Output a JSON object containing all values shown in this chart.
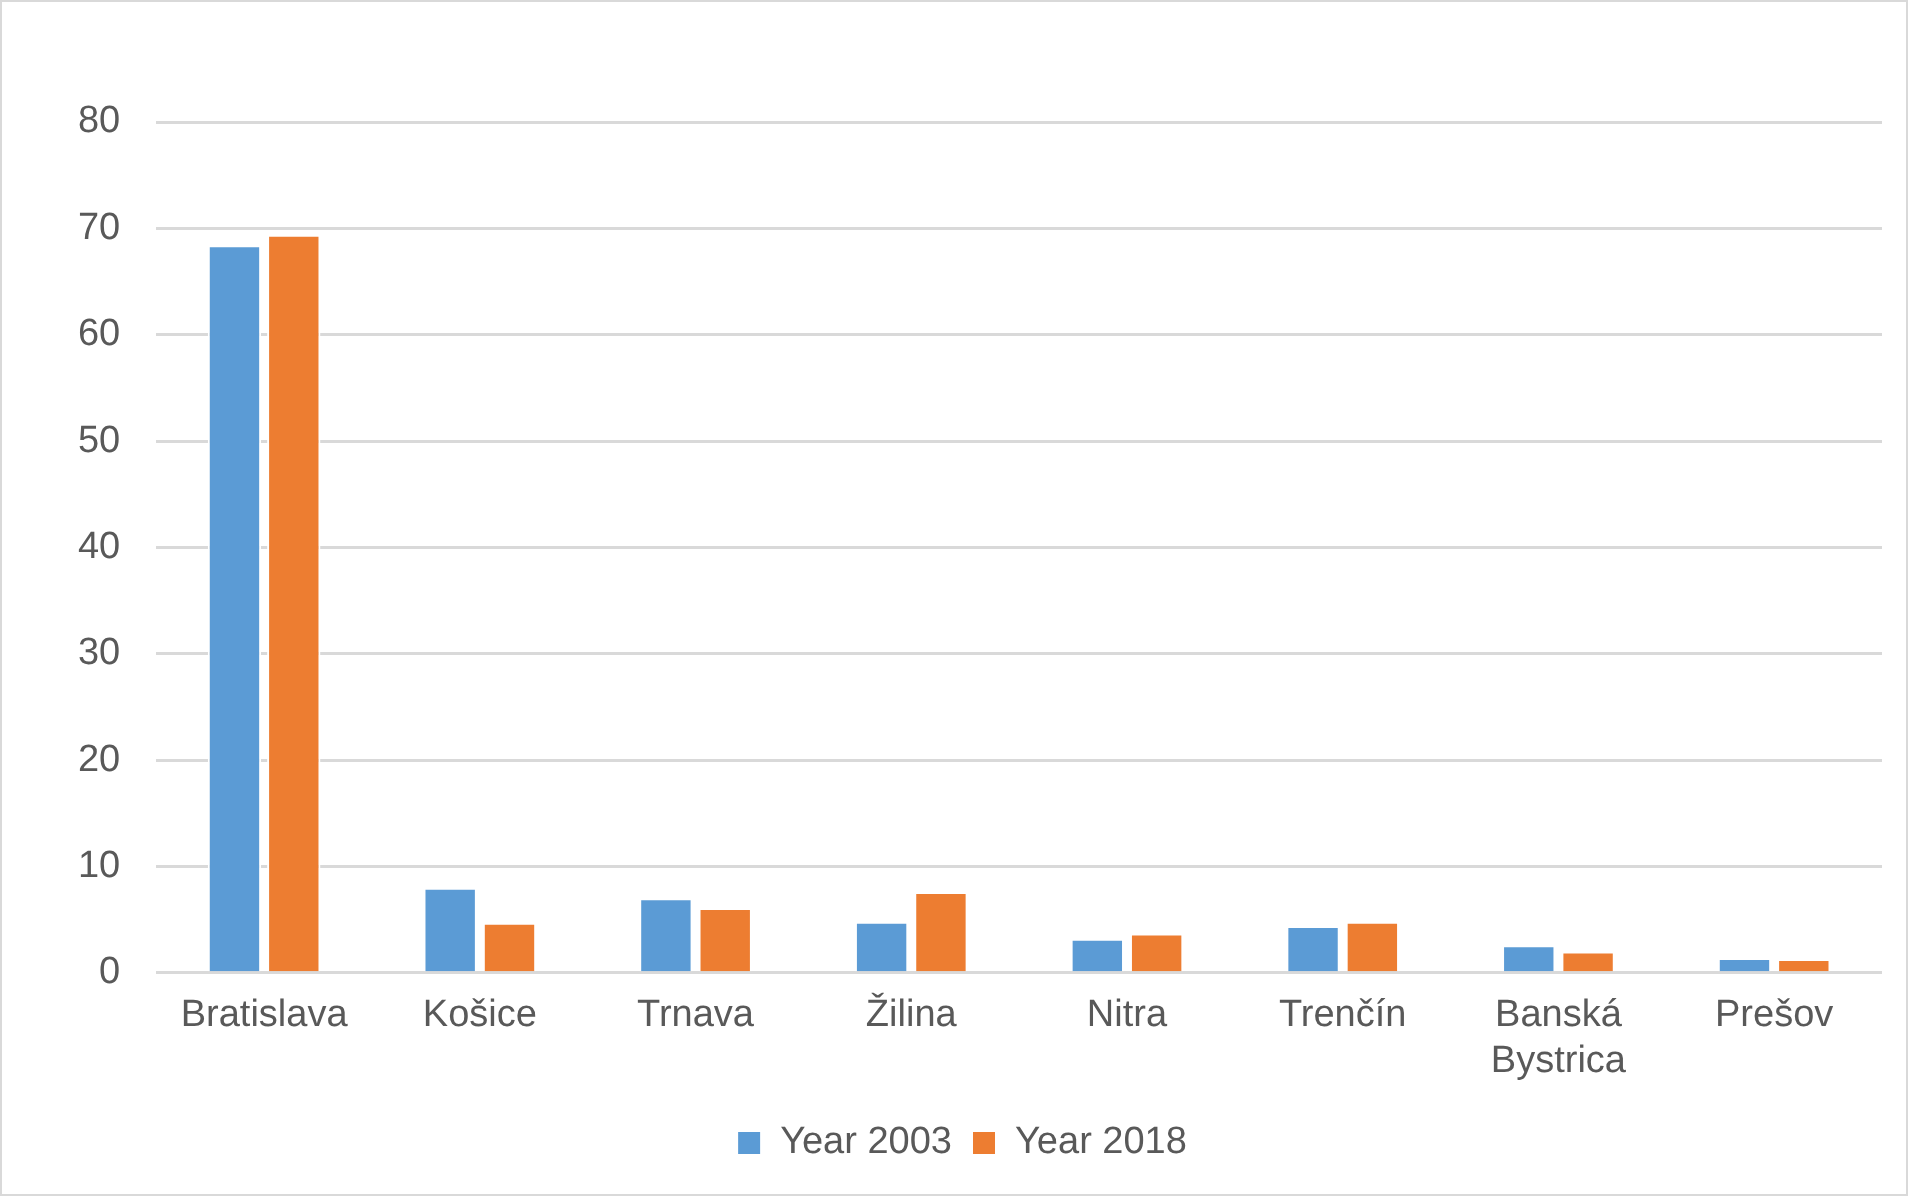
{
  "chart_data": {
    "type": "bar",
    "categories": [
      "Bratislava",
      "Košice",
      "Trnava",
      "Žilina",
      "Nitra",
      "Trenčín",
      "Banská Bystrica",
      "Prešov"
    ],
    "series": [
      {
        "name": "Year 2003",
        "color": "#5b9bd5",
        "values": [
          68.4,
          8.0,
          7.0,
          4.8,
          3.2,
          4.4,
          2.6,
          1.4
        ]
      },
      {
        "name": "Year 2018",
        "color": "#ed7d31",
        "values": [
          69.4,
          4.7,
          6.1,
          7.6,
          3.7,
          4.8,
          2.0,
          1.3
        ]
      }
    ],
    "ylim": [
      0,
      80
    ],
    "yticks": [
      0,
      10,
      20,
      30,
      40,
      50,
      60,
      70,
      80
    ],
    "grid": "y",
    "legend": "bottom"
  }
}
